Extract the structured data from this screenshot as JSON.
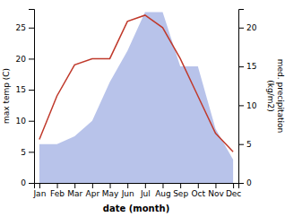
{
  "chart_data": {
    "type": "line",
    "categories": [
      "Jan",
      "Feb",
      "Mar",
      "Apr",
      "May",
      "Jun",
      "Jul",
      "Aug",
      "Sep",
      "Oct",
      "Nov",
      "Dec"
    ],
    "series": [
      {
        "type": "area",
        "color": "#b0bce8",
        "axis": "y2",
        "values": [
          5,
          5,
          6,
          8,
          13,
          17,
          22,
          22,
          15,
          15,
          7,
          3
        ]
      },
      {
        "type": "line",
        "color": "#c0392b",
        "values": [
          7,
          14,
          19,
          20,
          20,
          26,
          27,
          25,
          20,
          14,
          8,
          5
        ]
      }
    ],
    "ylim": [
      0,
      28
    ],
    "yticks": [
      0,
      5,
      10,
      15,
      20,
      25
    ],
    "y2lim": [
      0,
      22.4
    ],
    "y2ticks": [
      0,
      5,
      10,
      15,
      20
    ],
    "xlabel": "date (month)",
    "ylabel": "max temp (C)",
    "y2label": "med. precipitation\n(kg/m2)",
    "grid": false
  }
}
